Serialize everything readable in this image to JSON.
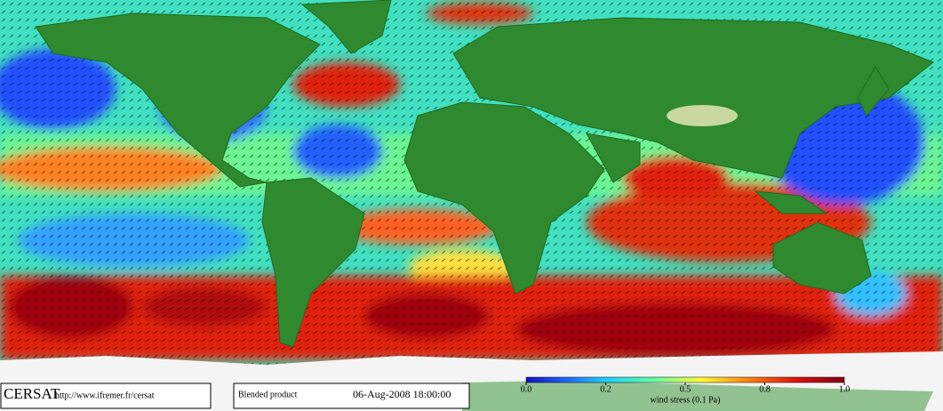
{
  "logo": "CERSAT",
  "url": "http://www.ifremer.fr/cersat",
  "product": "Blended product",
  "datetime": "06-Aug-2008 18:00:00",
  "colorbar": {
    "label": "wind stress (0.1 Pa)",
    "ticks": [
      {
        "value": 0,
        "label": "0.0"
      },
      0.2,
      0.5,
      0.8,
      {
        "value": 1,
        "label": "1.0"
      }
    ]
  }
}
